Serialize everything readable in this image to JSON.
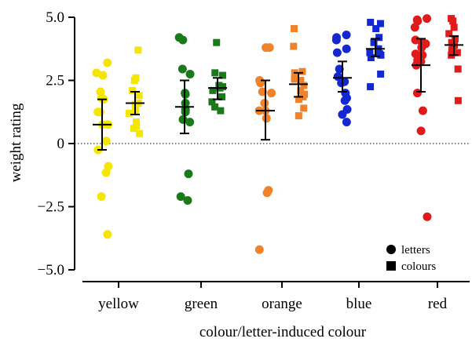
{
  "chart_data": {
    "type": "scatter",
    "xlabel": "colour/letter-induced colour",
    "ylabel": "weight rating",
    "ylim": [
      -5.0,
      5.0
    ],
    "yticks": [
      {
        "value": 5.0,
        "label": "5.0"
      },
      {
        "value": 2.5,
        "label": "2.5"
      },
      {
        "value": 0,
        "label": "0"
      },
      {
        "value": -2.5,
        "label": "−2.5"
      },
      {
        "value": -5.0,
        "label": "−5.0"
      }
    ],
    "zero_line": "dotted",
    "legend": {
      "placement": "bottom-right",
      "items": [
        {
          "name": "letters",
          "marker": "circle"
        },
        {
          "name": "colours",
          "marker": "square"
        }
      ]
    },
    "categories": [
      {
        "name": "yellow",
        "color": "#f5e600",
        "letters": {
          "mean": 0.75,
          "ci": [
            -0.25,
            1.75
          ],
          "values": [
            3.2,
            2.8,
            2.7,
            2.05,
            1.8,
            1.75,
            1.25,
            1.25,
            0.75,
            0.75,
            0.1,
            -0.25,
            -0.9,
            -1.15,
            -2.1,
            -3.6
          ]
        },
        "colours": {
          "mean": 1.6,
          "ci": [
            1.15,
            2.05
          ],
          "values": [
            3.7,
            2.6,
            2.5,
            2.1,
            1.9,
            1.6,
            1.55,
            1.5,
            1.3,
            1.2,
            0.85,
            0.7,
            0.6,
            0.4
          ]
        }
      },
      {
        "name": "green",
        "color": "#1a7a1a",
        "letters": {
          "mean": 1.45,
          "ci": [
            0.4,
            2.5
          ],
          "values": [
            4.2,
            4.1,
            2.95,
            2.75,
            2.0,
            1.95,
            1.6,
            1.35,
            1.25,
            0.95,
            0.85,
            -1.2,
            -2.1,
            -2.25
          ]
        },
        "colours": {
          "mean": 2.2,
          "ci": [
            1.75,
            2.6
          ],
          "values": [
            4.0,
            2.8,
            2.7,
            2.3,
            2.25,
            2.2,
            2.1,
            1.85,
            1.65,
            1.45,
            1.3
          ]
        }
      },
      {
        "name": "orange",
        "color": "#f0822a",
        "letters": {
          "mean": 1.3,
          "ci": [
            0.15,
            2.5
          ],
          "values": [
            3.8,
            3.8,
            2.5,
            2.4,
            2.05,
            2.0,
            1.6,
            1.3,
            1.3,
            1.0,
            -1.85,
            -1.95,
            -4.2
          ]
        },
        "colours": {
          "mean": 2.35,
          "ci": [
            1.85,
            2.8
          ],
          "values": [
            4.55,
            3.85,
            2.85,
            2.8,
            2.55,
            2.5,
            2.3,
            2.1,
            1.95,
            1.85,
            1.75,
            1.4,
            1.1
          ]
        }
      },
      {
        "name": "blue",
        "color": "#1428d2",
        "letters": {
          "mean": 2.6,
          "ci": [
            2.05,
            3.25
          ],
          "values": [
            4.3,
            4.2,
            4.1,
            3.75,
            3.6,
            2.95,
            2.65,
            2.45,
            2.4,
            2.0,
            1.8,
            1.7,
            1.35,
            1.15,
            0.85
          ]
        },
        "colours": {
          "mean": 3.75,
          "ci": [
            3.45,
            4.15
          ],
          "values": [
            4.8,
            4.75,
            4.55,
            4.2,
            4.0,
            3.75,
            3.6,
            3.55,
            3.5,
            3.4,
            2.75,
            2.25
          ]
        }
      },
      {
        "name": "red",
        "color": "#e01b1b",
        "letters": {
          "mean": 3.1,
          "ci": [
            2.05,
            4.15
          ],
          "values": [
            4.95,
            4.9,
            4.85,
            4.6,
            4.1,
            4.0,
            3.95,
            3.8,
            3.55,
            3.5,
            3.3,
            3.25,
            3.1,
            2.0,
            1.3,
            0.5,
            -2.9
          ]
        },
        "colours": {
          "mean": 3.9,
          "ci": [
            3.5,
            4.25
          ],
          "values": [
            4.95,
            4.85,
            4.6,
            4.35,
            4.15,
            4.0,
            3.9,
            3.85,
            3.7,
            3.6,
            3.5,
            2.95,
            1.7
          ]
        }
      }
    ]
  }
}
